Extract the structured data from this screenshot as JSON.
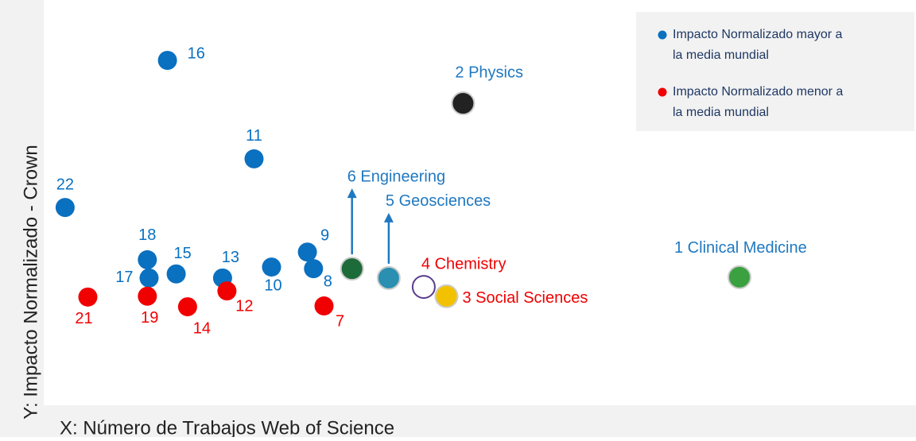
{
  "chart_data": {
    "type": "scatter",
    "x_label": "X: Número de Trabajos Web of Science",
    "y_label": "Y: Impacto Normalizado  - Crown",
    "xlim": [
      0,
      100
    ],
    "ylim": [
      0,
      100
    ],
    "legend": "top-right",
    "series": [
      {
        "name": "Impacto Normalizado mayor a la media mundial",
        "color": "#0a70c0",
        "labels": [
          "16",
          "11",
          "22",
          "18",
          "17",
          "15",
          "13",
          "10",
          "9",
          "8"
        ],
        "x": [
          14.6,
          24.5,
          2.9,
          12.3,
          12.5,
          15.6,
          20.9,
          26.5,
          30.6,
          31.3
        ],
        "values": [
          85.1,
          60.8,
          48.8,
          35.9,
          31.4,
          32.4,
          31.4,
          34.1,
          37.8,
          33.7
        ]
      },
      {
        "name": "Impacto Normalizado menor a la media mundial",
        "color": "#f00000",
        "labels": [
          "21",
          "19",
          "14",
          "12",
          "7"
        ],
        "x": [
          5.5,
          12.3,
          16.9,
          21.4,
          32.5
        ],
        "values": [
          26.7,
          26.9,
          24.3,
          28.2,
          24.5
        ]
      }
    ],
    "fields": {
      "labels": [
        "6 Engineering",
        "5 Geosciences",
        "4 Chemistry",
        "3 Social Sciences",
        "2 Physics",
        "1 Clinical Medicine"
      ],
      "colors": [
        "#1f78c0",
        "#1f78c0",
        "#f00000",
        "#f00000",
        "#1f78c0",
        "#1f78c0"
      ],
      "x": [
        35.7,
        39.9,
        43.9,
        46.5,
        48.4,
        80.0
      ],
      "values": [
        33.7,
        31.4,
        29.2,
        26.9,
        74.5,
        31.6
      ]
    }
  }
}
